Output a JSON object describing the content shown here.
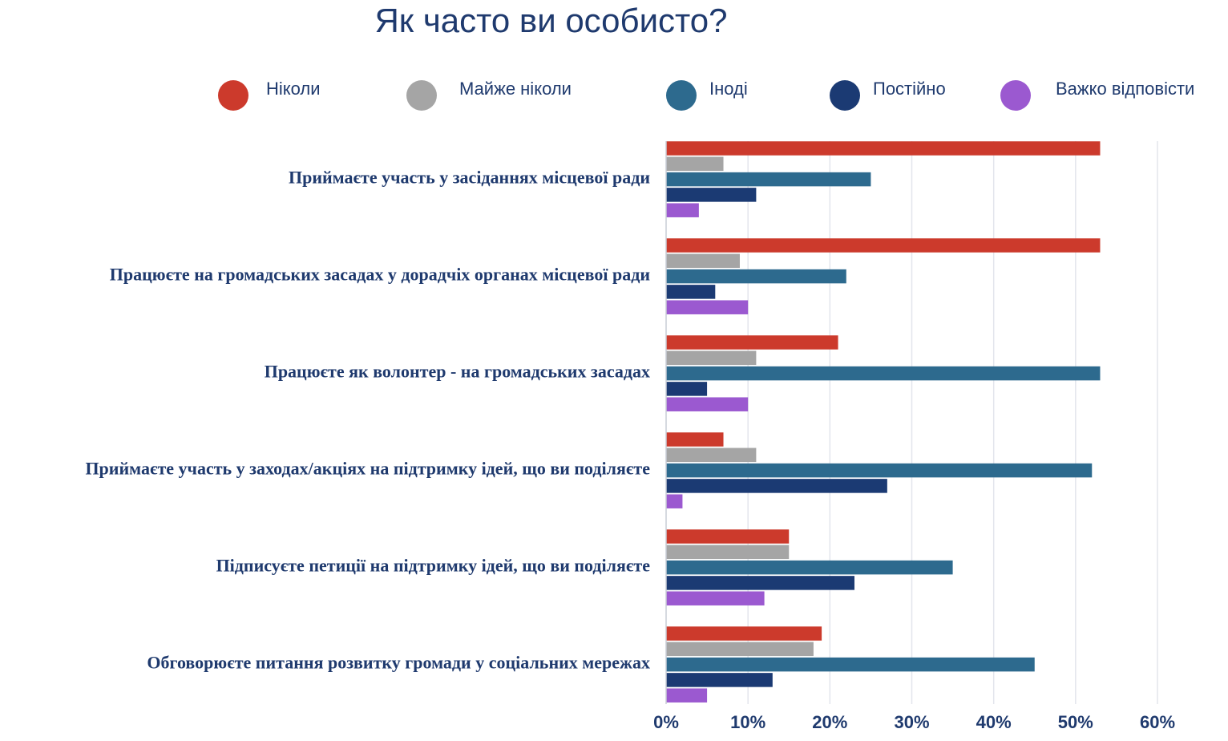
{
  "chart_data": {
    "type": "bar",
    "orientation": "horizontal",
    "title": "Як часто ви особисто?",
    "categories": [
      "Приймаєте участь у засіданнях місцевої ради",
      "Працюєте на громадських засадах у дорадчіх органах місцевої ради",
      "Працюєте як волонтер - на громадських засадах",
      "Приймаєте участь у заходах/акціях на підтримку ідей, що ви поділяєте",
      "Підписуєте петиції на підтримку ідей, що ви поділяєте",
      "Обговорюєте питання розвитку громади у соціальних мережах"
    ],
    "series": [
      {
        "name": "Ніколи",
        "color": "#cc3a2c",
        "values": [
          53,
          53,
          21,
          7,
          15,
          19
        ]
      },
      {
        "name": "Майже ніколи",
        "color": "#a5a5a5",
        "values": [
          7,
          9,
          11,
          11,
          15,
          18
        ]
      },
      {
        "name": "Іноді",
        "color": "#2d6a8e",
        "values": [
          25,
          22,
          53,
          52,
          35,
          45
        ]
      },
      {
        "name": "Постійно",
        "color": "#1b3a73",
        "values": [
          11,
          6,
          5,
          27,
          23,
          13
        ]
      },
      {
        "name": "Важко відповісти",
        "color": "#9b59d0",
        "values": [
          4,
          10,
          10,
          2,
          12,
          5
        ]
      }
    ],
    "xlim": [
      0,
      60
    ],
    "x_ticks": [
      0,
      10,
      20,
      30,
      40,
      50,
      60
    ],
    "tick_suffix": "%",
    "grid": true,
    "legend_position": "top"
  }
}
